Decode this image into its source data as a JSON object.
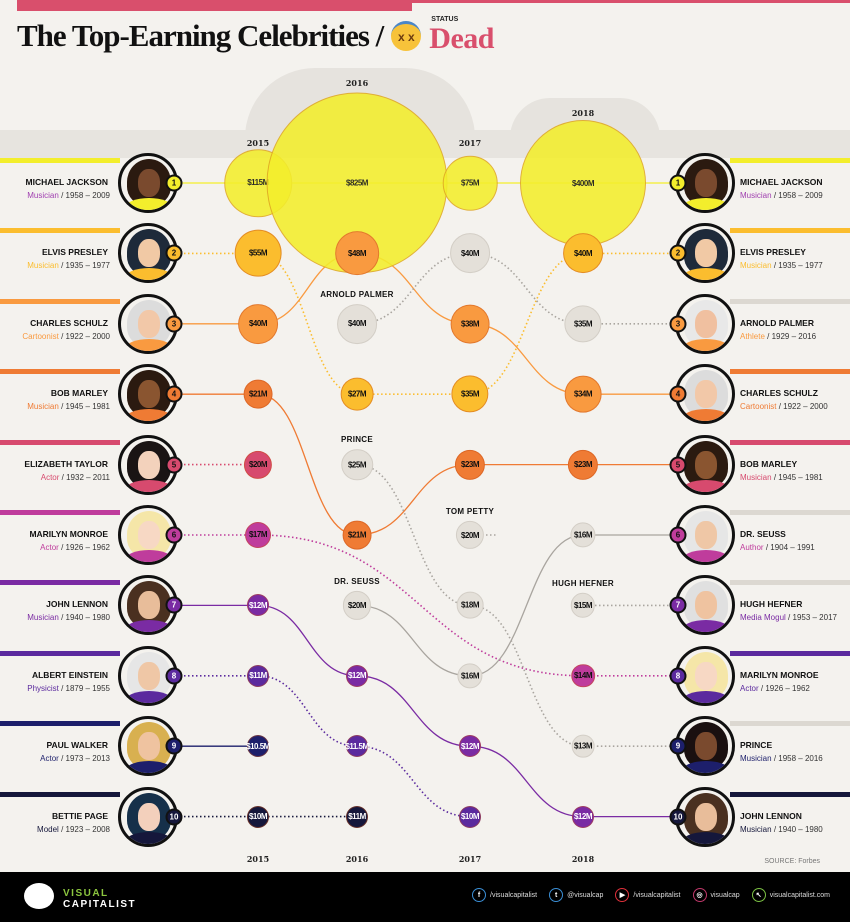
{
  "header": {
    "title": "The Top-Earning Celebrities /",
    "status_label": "STATUS",
    "status_value": "Dead",
    "emoji": "x x"
  },
  "years": [
    "2015",
    "2016",
    "2017",
    "2018"
  ],
  "colors": {
    "1": "#f3ee2c",
    "2": "#fbbd2e",
    "3": "#f99a40",
    "4": "#ef7b34",
    "5": "#d74a6e",
    "6": "#bf3c9c",
    "7": "#7a2ba3",
    "8": "#5b2a9e",
    "9": "#1d1f6b",
    "10": "#15173b",
    "gray": "#e4e0d9",
    "accent": "#d94f6c"
  },
  "left": [
    {
      "rank": "1",
      "name": "MICHAEL JACKSON",
      "profession": "Musician",
      "years": "/ 1958 – 2009",
      "skin": "#7a4a2e",
      "hair": "#2b1a10"
    },
    {
      "rank": "2",
      "name": "ELVIS PRESLEY",
      "profession": "Musician",
      "years": "/ 1935 – 1977",
      "skin": "#f1c9a5",
      "hair": "#1e2a3a"
    },
    {
      "rank": "3",
      "name": "CHARLES SCHULZ",
      "profession": "Cartoonist",
      "years": "/ 1922 – 2000",
      "skin": "#f2c8a8",
      "hair": "#dcdcdc"
    },
    {
      "rank": "4",
      "name": "BOB MARLEY",
      "profession": "Musician",
      "years": "/ 1945 – 1981",
      "skin": "#8a5530",
      "hair": "#2b1a10"
    },
    {
      "rank": "5",
      "name": "ELIZABETH TAYLOR",
      "profession": "Actor",
      "years": "/ 1932 – 2011",
      "skin": "#f3d2bc",
      "hair": "#1a1414"
    },
    {
      "rank": "6",
      "name": "MARILYN MONROE",
      "profession": "Actor",
      "years": "/ 1926 – 1962",
      "skin": "#f7d8c4",
      "hair": "#f5e6a8"
    },
    {
      "rank": "7",
      "name": "JOHN LENNON",
      "profession": "Musician",
      "years": "/ 1940 – 1980",
      "skin": "#e8bd9a",
      "hair": "#4a3020"
    },
    {
      "rank": "8",
      "name": "ALBERT EINSTEIN",
      "profession": "Physicist",
      "years": "/ 1879 – 1955",
      "skin": "#efc7a6",
      "hair": "#e6e6e6"
    },
    {
      "rank": "9",
      "name": "PAUL WALKER",
      "profession": "Actor",
      "years": "/ 1973 – 2013",
      "skin": "#efc3a0",
      "hair": "#d8b050"
    },
    {
      "rank": "10",
      "name": "BETTIE PAGE",
      "profession": "Model",
      "years": "/ 1923 – 2008",
      "skin": "#f3d0bc",
      "hair": "#16304a"
    }
  ],
  "right": [
    {
      "rank": "1",
      "name": "MICHAEL JACKSON",
      "profession": "Musician",
      "years": "/ 1958 – 2009",
      "skin": "#7a4a2e",
      "hair": "#2b1a10"
    },
    {
      "rank": "2",
      "name": "ELVIS PRESLEY",
      "profession": "Musician",
      "years": "/ 1935 – 1977",
      "skin": "#f1c9a5",
      "hair": "#1e2a3a"
    },
    {
      "rank": "3",
      "name": "ARNOLD PALMER",
      "profession": "Athlete",
      "years": "/ 1929 – 2016",
      "skin": "#f0c0a0",
      "hair": "#e8e8e8"
    },
    {
      "rank": "4",
      "name": "CHARLES SCHULZ",
      "profession": "Cartoonist",
      "years": "/ 1922 – 2000",
      "skin": "#f2c8a8",
      "hair": "#dcdcdc"
    },
    {
      "rank": "5",
      "name": "BOB MARLEY",
      "profession": "Musician",
      "years": "/ 1945 – 1981",
      "skin": "#8a5530",
      "hair": "#2b1a10"
    },
    {
      "rank": "6",
      "name": "DR. SEUSS",
      "profession": "Author",
      "years": "/ 1904 – 1991",
      "skin": "#efc7a6",
      "hair": "#e6e6e6"
    },
    {
      "rank": "7",
      "name": "HUGH HEFNER",
      "profession": "Media Mogul",
      "years": "/ 1953 – 2017",
      "skin": "#efc3a0",
      "hair": "#e0e0e0"
    },
    {
      "rank": "8",
      "name": "MARILYN MONROE",
      "profession": "Actor",
      "years": "/ 1926 – 1962",
      "skin": "#f7d8c4",
      "hair": "#f5e6a8"
    },
    {
      "rank": "9",
      "name": "PRINCE",
      "profession": "Musician",
      "years": "/ 1958 – 2016",
      "skin": "#7a4a2e",
      "hair": "#1a1010"
    },
    {
      "rank": "10",
      "name": "JOHN LENNON",
      "profession": "Musician",
      "years": "/ 1940 – 1980",
      "skin": "#e8bd9a",
      "hair": "#4a3020"
    }
  ],
  "chart_data": {
    "type": "bubble-rank",
    "title": "The Top-Earning Celebrities / Dead",
    "unit": "USD millions",
    "columns": [
      {
        "year": "2015",
        "bubbles": [
          {
            "row": 1,
            "value": 115,
            "label": "$115M",
            "color": "1"
          },
          {
            "row": 2,
            "value": 55,
            "label": "$55M",
            "color": "2"
          },
          {
            "row": 3,
            "value": 40,
            "label": "$40M",
            "color": "3"
          },
          {
            "row": 4,
            "value": 21,
            "label": "$21M",
            "color": "4"
          },
          {
            "row": 5,
            "value": 20,
            "label": "$20M",
            "color": "5"
          },
          {
            "row": 6,
            "value": 17,
            "label": "$17M",
            "color": "6"
          },
          {
            "row": 7,
            "value": 12,
            "label": "$12M",
            "color": "7"
          },
          {
            "row": 8,
            "value": 11,
            "label": "$11M",
            "color": "8"
          },
          {
            "row": 9,
            "value": 10.5,
            "label": "$10.5M",
            "color": "9"
          },
          {
            "row": 10,
            "value": 10,
            "label": "$10M",
            "color": "10"
          }
        ]
      },
      {
        "year": "2016",
        "bubbles": [
          {
            "row": 1,
            "value": 825,
            "label": "$825M",
            "color": "1"
          },
          {
            "row": 2,
            "value": 48,
            "label": "$48M",
            "color": "3"
          },
          {
            "row": 3,
            "value": 40,
            "label": "$40M",
            "color": "gray",
            "name": "ARNOLD PALMER"
          },
          {
            "row": 4,
            "value": 27,
            "label": "$27M",
            "color": "2"
          },
          {
            "row": 5,
            "value": 25,
            "label": "$25M",
            "color": "gray",
            "name": "PRINCE"
          },
          {
            "row": 6,
            "value": 21,
            "label": "$21M",
            "color": "4"
          },
          {
            "row": 7,
            "value": 20,
            "label": "$20M",
            "color": "gray",
            "name": "DR. SEUSS"
          },
          {
            "row": 8,
            "value": 12,
            "label": "$12M",
            "color": "7"
          },
          {
            "row": 9,
            "value": 11.5,
            "label": "$11.5M",
            "color": "8"
          },
          {
            "row": 10,
            "value": 11,
            "label": "$11M",
            "color": "10"
          }
        ]
      },
      {
        "year": "2017",
        "bubbles": [
          {
            "row": 1,
            "value": 75,
            "label": "$75M",
            "color": "1"
          },
          {
            "row": 2,
            "value": 40,
            "label": "$40M",
            "color": "gray"
          },
          {
            "row": 3,
            "value": 38,
            "label": "$38M",
            "color": "3"
          },
          {
            "row": 4,
            "value": 35,
            "label": "$35M",
            "color": "2"
          },
          {
            "row": 5,
            "value": 23,
            "label": "$23M",
            "color": "4"
          },
          {
            "row": 6,
            "value": 20,
            "label": "$20M",
            "color": "gray",
            "name": "TOM PETTY"
          },
          {
            "row": 7,
            "value": 18,
            "label": "$18M",
            "color": "gray"
          },
          {
            "row": 8,
            "value": 16,
            "label": "$16M",
            "color": "gray"
          },
          {
            "row": 9,
            "value": 12,
            "label": "$12M",
            "color": "7"
          },
          {
            "row": 10,
            "value": 10,
            "label": "$10M",
            "color": "8"
          }
        ]
      },
      {
        "year": "2018",
        "bubbles": [
          {
            "row": 1,
            "value": 400,
            "label": "$400M",
            "color": "1"
          },
          {
            "row": 2,
            "value": 40,
            "label": "$40M",
            "color": "2"
          },
          {
            "row": 3,
            "value": 35,
            "label": "$35M",
            "color": "gray"
          },
          {
            "row": 4,
            "value": 34,
            "label": "$34M",
            "color": "3"
          },
          {
            "row": 5,
            "value": 23,
            "label": "$23M",
            "color": "4"
          },
          {
            "row": 6,
            "value": 16,
            "label": "$16M",
            "color": "gray"
          },
          {
            "row": 7,
            "value": 15,
            "label": "$15M",
            "color": "gray",
            "name": "HUGH HEFNER"
          },
          {
            "row": 8,
            "value": 14,
            "label": "$14M",
            "color": "6"
          },
          {
            "row": 9,
            "value": 13,
            "label": "$13M",
            "color": "gray"
          },
          {
            "row": 10,
            "value": 12,
            "label": "$12M",
            "color": "7"
          }
        ]
      }
    ],
    "tracks": [
      {
        "person": "Michael Jackson",
        "rows": [
          1,
          1,
          1,
          1
        ],
        "color": "1",
        "dotted": false
      },
      {
        "person": "Elvis Presley",
        "rows": [
          2,
          4,
          4,
          2
        ],
        "color": "2",
        "dotted": true
      },
      {
        "person": "Charles Schulz",
        "rows": [
          3,
          2,
          3,
          4
        ],
        "color": "3",
        "dotted": false
      },
      {
        "person": "Bob Marley",
        "rows": [
          4,
          6,
          5,
          5
        ],
        "color": "4",
        "dotted": false
      },
      {
        "person": "Elizabeth Taylor",
        "rows": [
          5,
          null,
          null,
          null
        ],
        "color": "5",
        "dotted": true
      },
      {
        "person": "Marilyn Monroe",
        "rows": [
          6,
          null,
          null,
          8
        ],
        "color": "6",
        "dotted": true
      },
      {
        "person": "John Lennon",
        "rows": [
          7,
          8,
          9,
          10
        ],
        "color": "7",
        "dotted": false
      },
      {
        "person": "Albert Einstein",
        "rows": [
          8,
          9,
          10,
          null
        ],
        "color": "8",
        "dotted": true
      },
      {
        "person": "Paul Walker",
        "rows": [
          9,
          null,
          null,
          null
        ],
        "color": "9",
        "dotted": false
      },
      {
        "person": "Bettie Page",
        "rows": [
          10,
          10,
          null,
          null
        ],
        "color": "10",
        "dotted": true
      },
      {
        "person": "Arnold Palmer",
        "rows": [
          null,
          3,
          2,
          3
        ],
        "color": "gray",
        "dotted": true
      },
      {
        "person": "Prince",
        "rows": [
          null,
          5,
          7,
          9
        ],
        "color": "gray",
        "dotted": true
      },
      {
        "person": "Dr. Seuss",
        "rows": [
          null,
          7,
          8,
          6
        ],
        "color": "gray",
        "dotted": false
      },
      {
        "person": "Tom Petty",
        "rows": [
          null,
          null,
          6,
          null
        ],
        "color": "gray",
        "dotted": true
      },
      {
        "person": "Hugh Hefner",
        "rows": [
          null,
          null,
          null,
          7
        ],
        "color": "gray",
        "dotted": true
      }
    ]
  },
  "footer": {
    "source": "SOURCE: Forbes",
    "logo_top": "VISUAL",
    "logo_bottom": "CAPITALIST",
    "social": [
      {
        "icon": "facebook-icon",
        "glyph": "f",
        "text": "/visualcapitalist",
        "color": "#3b8fd6"
      },
      {
        "icon": "twitter-icon",
        "glyph": "t",
        "text": "@visualcap",
        "color": "#3b8fd6"
      },
      {
        "icon": "youtube-icon",
        "glyph": "▶",
        "text": "/visualcapitalist",
        "color": "#e0303a"
      },
      {
        "icon": "instagram-icon",
        "glyph": "◎",
        "text": "visualcap",
        "color": "#c0386a"
      },
      {
        "icon": "cursor-icon",
        "glyph": "↖",
        "text": "visualcapitalist.com",
        "color": "#7bc043"
      }
    ]
  }
}
